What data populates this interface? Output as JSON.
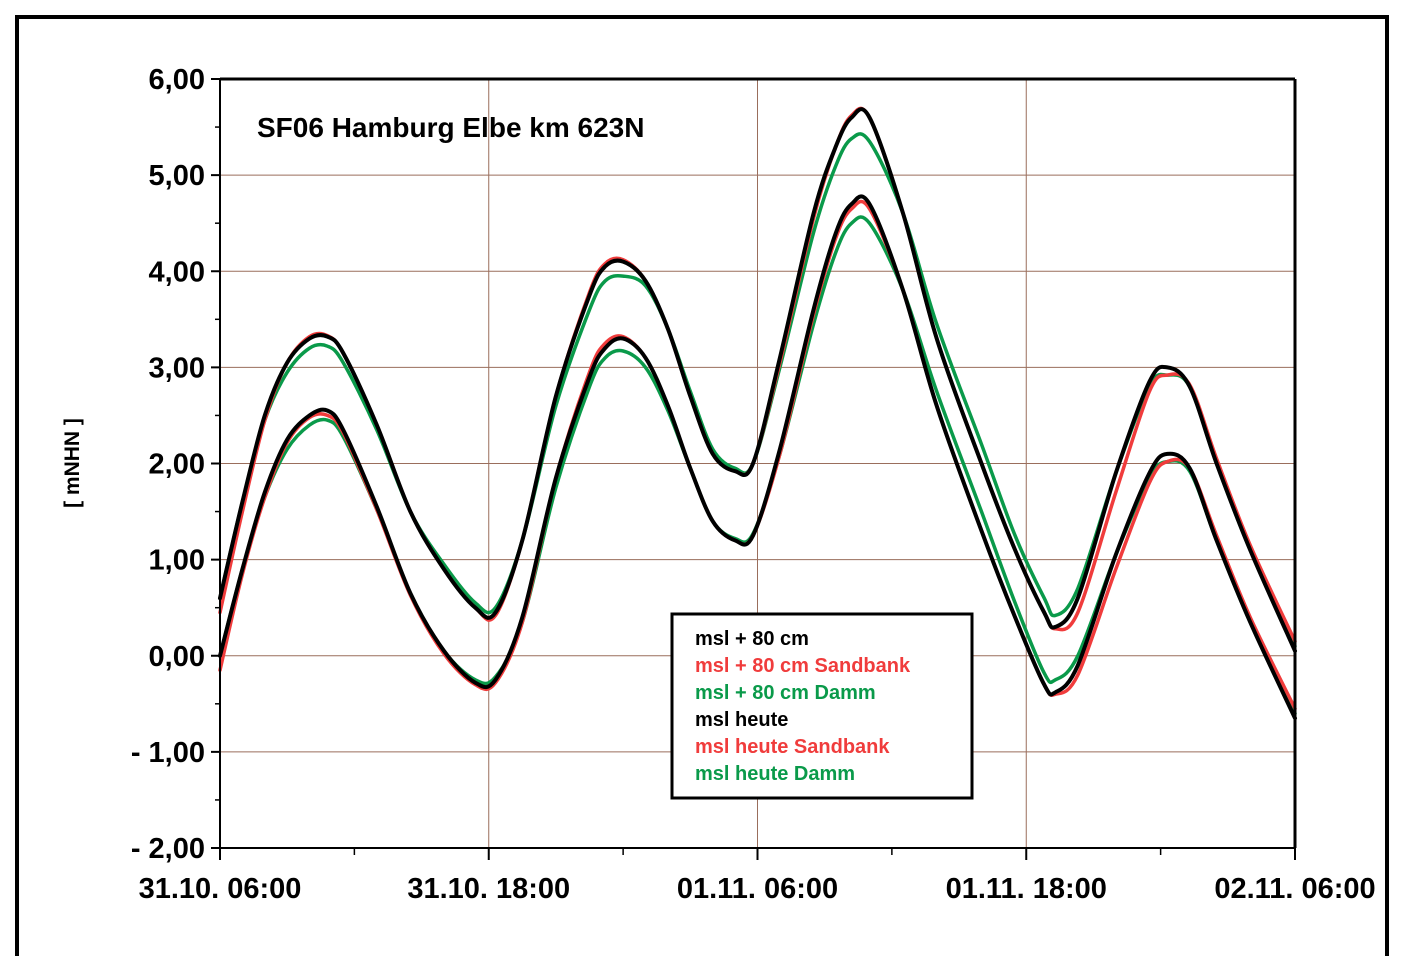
{
  "chart_data": {
    "type": "line",
    "title": "SF06 Hamburg   Elbe km 623N",
    "ylabel": "[ mNHN ]",
    "xlabel": "",
    "ylim": [
      -2,
      6
    ],
    "xlim": [
      0,
      48
    ],
    "yticks": [
      {
        "value": 6,
        "label": "6,00"
      },
      {
        "value": 5,
        "label": "5,00"
      },
      {
        "value": 4,
        "label": "4,00"
      },
      {
        "value": 3,
        "label": "3,00"
      },
      {
        "value": 2,
        "label": "2,00"
      },
      {
        "value": 1,
        "label": "1,00"
      },
      {
        "value": 0,
        "label": "0,00"
      },
      {
        "value": -1,
        "label": "- 1,00"
      },
      {
        "value": -2,
        "label": "- 2,00"
      }
    ],
    "xticks": [
      {
        "value": 0,
        "label": "31.10. 06:00"
      },
      {
        "value": 12,
        "label": "31.10. 18:00"
      },
      {
        "value": 24,
        "label": "01.11. 06:00"
      },
      {
        "value": 36,
        "label": "01.11. 18:00"
      },
      {
        "value": 48,
        "label": "02.11. 06:00"
      }
    ],
    "x_unit": "hours since 31.10. 06:00",
    "grid": true,
    "legend_position": "center-bottom",
    "series": [
      {
        "name": "msl + 80 cm",
        "color": "#000000",
        "x": [
          0,
          1,
          2,
          3,
          4,
          4.8,
          5.5,
          7,
          8.5,
          10,
          11.4,
          12.3,
          13.5,
          15,
          16.5,
          17.2,
          18,
          19,
          20,
          21,
          22,
          23,
          23.8,
          25,
          26.5,
          27.5,
          28.2,
          29,
          30.5,
          32,
          34,
          35.5,
          36.8,
          37.3,
          38.3,
          40,
          41.5,
          42.3,
          43.3,
          44.5,
          46,
          48
        ],
        "y": [
          0.6,
          1.6,
          2.5,
          3.05,
          3.3,
          3.32,
          3.15,
          2.4,
          1.5,
          0.9,
          0.5,
          0.45,
          1.2,
          2.7,
          3.75,
          4.05,
          4.1,
          3.9,
          3.4,
          2.7,
          2.1,
          1.92,
          2.0,
          3.1,
          4.6,
          5.3,
          5.6,
          5.6,
          4.6,
          3.3,
          2.0,
          1.1,
          0.45,
          0.3,
          0.6,
          1.9,
          2.85,
          3.0,
          2.8,
          2.0,
          1.1,
          0.05
        ]
      },
      {
        "name": "msl + 80 cm Sandbank",
        "color": "#f03c3c",
        "x": [
          0,
          1,
          2,
          3,
          4,
          4.8,
          5.5,
          7,
          8.5,
          10,
          11.4,
          12.3,
          13.5,
          15,
          16.5,
          17.2,
          18,
          19,
          20,
          21,
          22,
          23,
          23.8,
          25,
          26.5,
          27.5,
          28.2,
          29,
          30.5,
          32,
          34,
          35.5,
          36.8,
          37.3,
          38.3,
          40,
          41.5,
          42.3,
          43.3,
          44.5,
          46,
          48
        ],
        "y": [
          0.45,
          1.5,
          2.45,
          3.05,
          3.32,
          3.33,
          3.15,
          2.4,
          1.5,
          0.9,
          0.5,
          0.42,
          1.2,
          2.7,
          3.78,
          4.08,
          4.12,
          3.9,
          3.4,
          2.7,
          2.1,
          1.92,
          2.0,
          3.05,
          4.55,
          5.3,
          5.62,
          5.6,
          4.6,
          3.3,
          2.0,
          1.1,
          0.45,
          0.28,
          0.45,
          1.7,
          2.75,
          2.92,
          2.82,
          2.05,
          1.15,
          0.15
        ]
      },
      {
        "name": "msl + 80 cm Damm",
        "color": "#0a9a4a",
        "x": [
          0,
          1,
          2,
          3,
          4,
          4.8,
          5.5,
          7,
          8.5,
          10,
          11.4,
          12.3,
          13.5,
          15,
          16.5,
          17.2,
          18,
          19,
          20,
          21,
          22,
          23,
          23.8,
          25,
          26.5,
          27.5,
          28.2,
          29,
          30.5,
          32,
          34,
          35.5,
          36.8,
          37.3,
          38.3,
          40,
          41.5,
          42.3,
          43.3,
          44.5,
          46,
          48
        ],
        "y": [
          0.6,
          1.6,
          2.45,
          2.95,
          3.2,
          3.22,
          3.05,
          2.35,
          1.5,
          0.95,
          0.55,
          0.5,
          1.2,
          2.6,
          3.6,
          3.9,
          3.95,
          3.85,
          3.4,
          2.75,
          2.15,
          1.95,
          2.0,
          3.0,
          4.4,
          5.1,
          5.38,
          5.35,
          4.6,
          3.45,
          2.2,
          1.25,
          0.6,
          0.42,
          0.7,
          1.9,
          2.8,
          2.92,
          2.8,
          2.0,
          1.1,
          0.1
        ]
      },
      {
        "name": "msl heute",
        "color": "#000000",
        "x": [
          0,
          1,
          2,
          3,
          4,
          4.8,
          5.5,
          7,
          8.5,
          10,
          11.4,
          12.3,
          13.5,
          15,
          16.5,
          17.2,
          18,
          19,
          20,
          21,
          22,
          23,
          23.8,
          25,
          26.5,
          27.5,
          28.2,
          29,
          30.5,
          32,
          34,
          35.5,
          36.8,
          37.3,
          38.3,
          40,
          41.5,
          42.3,
          43.3,
          44.5,
          46,
          48
        ],
        "y": [
          0.0,
          0.9,
          1.7,
          2.25,
          2.5,
          2.55,
          2.35,
          1.55,
          0.65,
          0.05,
          -0.28,
          -0.25,
          0.4,
          1.85,
          2.9,
          3.2,
          3.3,
          3.1,
          2.6,
          1.95,
          1.4,
          1.2,
          1.25,
          2.15,
          3.6,
          4.4,
          4.7,
          4.7,
          3.8,
          2.6,
          1.3,
          0.4,
          -0.3,
          -0.38,
          -0.1,
          1.05,
          1.9,
          2.1,
          1.95,
          1.2,
          0.35,
          -0.65
        ]
      },
      {
        "name": "msl heute Sandbank",
        "color": "#f03c3c",
        "x": [
          0,
          1,
          2,
          3,
          4,
          4.8,
          5.5,
          7,
          8.5,
          10,
          11.4,
          12.3,
          13.5,
          15,
          16.5,
          17.2,
          18,
          19,
          20,
          21,
          22,
          23,
          23.8,
          25,
          26.5,
          27.5,
          28.2,
          29,
          30.5,
          32,
          34,
          35.5,
          36.8,
          37.3,
          38.3,
          40,
          41.5,
          42.3,
          43.3,
          44.5,
          46,
          48
        ],
        "y": [
          -0.15,
          0.85,
          1.65,
          2.22,
          2.48,
          2.5,
          2.32,
          1.52,
          0.63,
          0.02,
          -0.3,
          -0.28,
          0.35,
          1.85,
          2.95,
          3.25,
          3.32,
          3.1,
          2.6,
          1.95,
          1.4,
          1.2,
          1.25,
          2.1,
          3.55,
          4.35,
          4.65,
          4.65,
          3.8,
          2.6,
          1.3,
          0.4,
          -0.3,
          -0.4,
          -0.2,
          0.9,
          1.8,
          2.02,
          1.95,
          1.25,
          0.4,
          -0.55
        ]
      },
      {
        "name": "msl heute Damm",
        "color": "#0a9a4a",
        "x": [
          0,
          1,
          2,
          3,
          4,
          4.8,
          5.5,
          7,
          8.5,
          10,
          11.4,
          12.3,
          13.5,
          15,
          16.5,
          17.2,
          18,
          19,
          20,
          21,
          22,
          23,
          23.8,
          25,
          26.5,
          27.5,
          28.2,
          29,
          30.5,
          32,
          34,
          35.5,
          36.8,
          37.3,
          38.3,
          40,
          41.5,
          42.3,
          43.3,
          44.5,
          46,
          48
        ],
        "y": [
          0.0,
          0.9,
          1.65,
          2.15,
          2.4,
          2.45,
          2.28,
          1.52,
          0.65,
          0.05,
          -0.25,
          -0.22,
          0.35,
          1.75,
          2.8,
          3.1,
          3.17,
          3.0,
          2.55,
          1.95,
          1.4,
          1.22,
          1.27,
          2.1,
          3.45,
          4.2,
          4.5,
          4.5,
          3.8,
          2.75,
          1.5,
          0.55,
          -0.18,
          -0.25,
          0.0,
          1.05,
          1.85,
          2.02,
          1.92,
          1.2,
          0.35,
          -0.6
        ]
      }
    ]
  }
}
